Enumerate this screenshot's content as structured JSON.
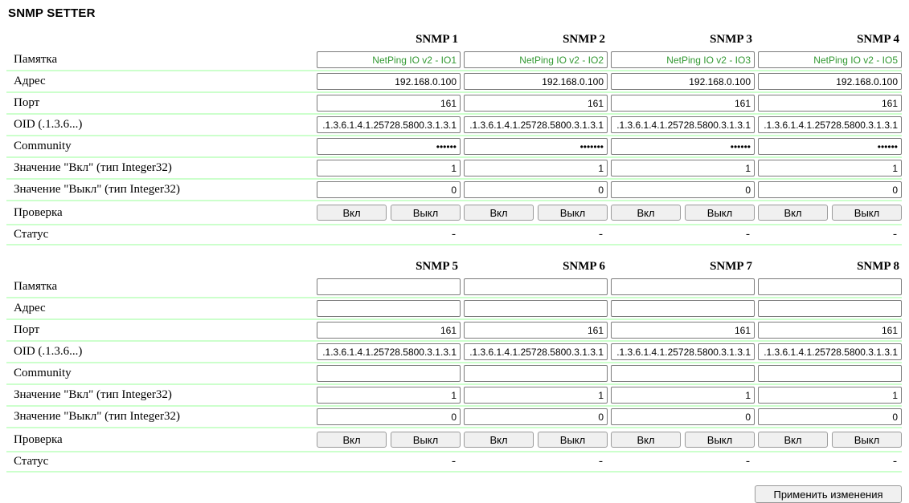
{
  "page": {
    "title": "SNMP SETTER"
  },
  "labels": {
    "memo": "Памятка",
    "address": "Адрес",
    "port": "Порт",
    "oid": "OID (.1.3.6...)",
    "community": "Community",
    "value_on": "Значение \"Вкл\" (тип Integer32)",
    "value_off": "Значение \"Выкл\" (тип Integer32)",
    "check": "Проверка",
    "status": "Статус",
    "on_button": "Вкл",
    "off_button": "Выкл"
  },
  "apply_button": "Применить изменения",
  "colors": {
    "accent_green": "#339933",
    "separator_green": "#ccffcc"
  },
  "tables": [
    {
      "columns": [
        {
          "header": "SNMP 1",
          "memo": "NetPing IO v2 - IO1",
          "address": "192.168.0.100",
          "port": "161",
          "oid": ".1.3.6.1.4.1.25728.5800.3.1.3.1",
          "community": "••••••",
          "value_on": "1",
          "value_off": "0",
          "status": "-"
        },
        {
          "header": "SNMP 2",
          "memo": "NetPing IO v2 - IO2",
          "address": "192.168.0.100",
          "port": "161",
          "oid": ".1.3.6.1.4.1.25728.5800.3.1.3.1",
          "community": "•••••••",
          "value_on": "1",
          "value_off": "0",
          "status": "-"
        },
        {
          "header": "SNMP 3",
          "memo": "NetPing IO v2 - IO3",
          "address": "192.168.0.100",
          "port": "161",
          "oid": ".1.3.6.1.4.1.25728.5800.3.1.3.1",
          "community": "••••••",
          "value_on": "1",
          "value_off": "0",
          "status": "-"
        },
        {
          "header": "SNMP 4",
          "memo": "NetPing IO v2 - IO5",
          "address": "192.168.0.100",
          "port": "161",
          "oid": ".1.3.6.1.4.1.25728.5800.3.1.3.1",
          "community": "••••••",
          "value_on": "1",
          "value_off": "0",
          "status": "-"
        }
      ]
    },
    {
      "columns": [
        {
          "header": "SNMP 5",
          "memo": "",
          "address": "",
          "port": "161",
          "oid": ".1.3.6.1.4.1.25728.5800.3.1.3.1",
          "community": "",
          "value_on": "1",
          "value_off": "0",
          "status": "-"
        },
        {
          "header": "SNMP 6",
          "memo": "",
          "address": "",
          "port": "161",
          "oid": ".1.3.6.1.4.1.25728.5800.3.1.3.1",
          "community": "",
          "value_on": "1",
          "value_off": "0",
          "status": "-"
        },
        {
          "header": "SNMP 7",
          "memo": "",
          "address": "",
          "port": "161",
          "oid": ".1.3.6.1.4.1.25728.5800.3.1.3.1",
          "community": "",
          "value_on": "1",
          "value_off": "0",
          "status": "-"
        },
        {
          "header": "SNMP 8",
          "memo": "",
          "address": "",
          "port": "161",
          "oid": ".1.3.6.1.4.1.25728.5800.3.1.3.1",
          "community": "",
          "value_on": "1",
          "value_off": "0",
          "status": "-"
        }
      ]
    }
  ]
}
